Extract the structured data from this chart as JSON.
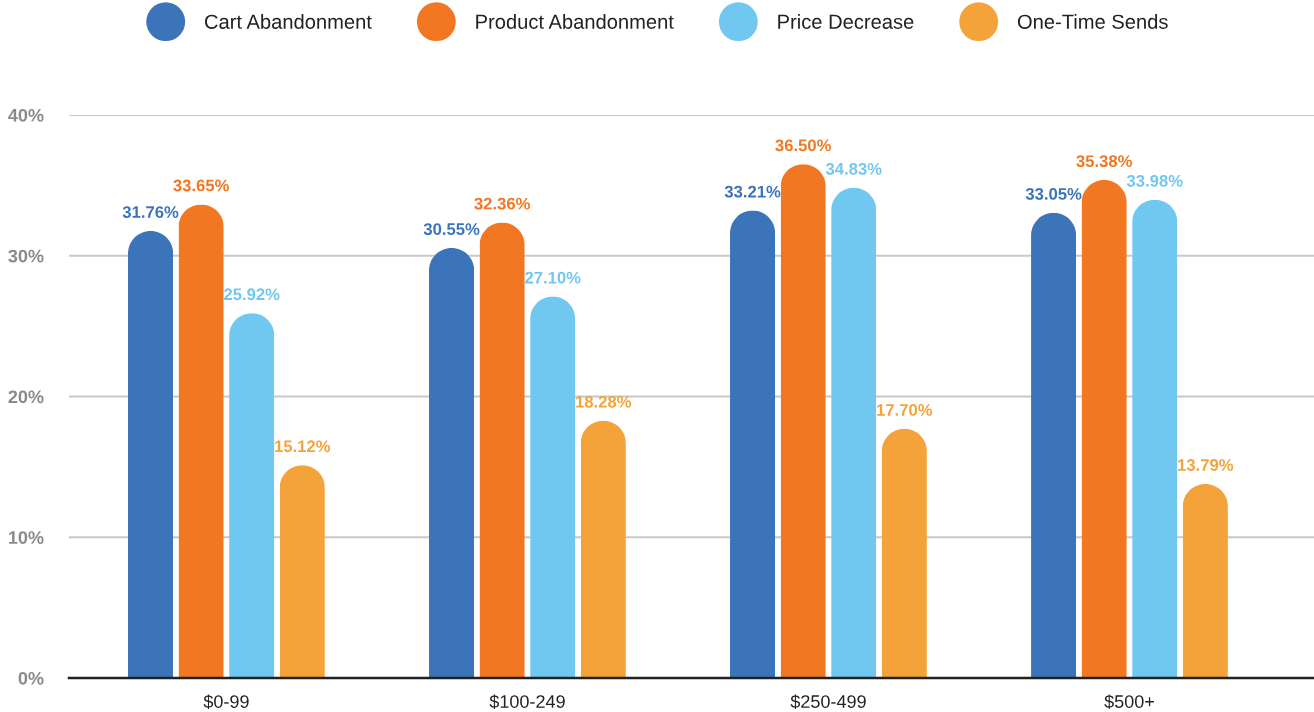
{
  "chart_data": {
    "type": "bar",
    "categories": [
      "$0-99",
      "$100-249",
      "$250-499",
      "$500+"
    ],
    "series": [
      {
        "name": "Cart Abandonment",
        "color": "#3c74ba",
        "values": [
          31.76,
          30.55,
          33.21,
          33.05
        ],
        "value_labels": [
          "31.76%",
          "30.55%",
          "33.21%",
          "33.05%"
        ]
      },
      {
        "name": "Product Abandonment",
        "color": "#f17722",
        "values": [
          33.65,
          32.36,
          36.5,
          35.38
        ],
        "value_labels": [
          "33.65%",
          "32.36%",
          "36.50%",
          "35.38%"
        ]
      },
      {
        "name": "Price Decrease",
        "color": "#70c8f1",
        "values": [
          25.92,
          27.1,
          34.83,
          33.98
        ],
        "value_labels": [
          "25.92%",
          "27.10%",
          "34.83%",
          "33.98%"
        ]
      },
      {
        "name": "One-Time Sends",
        "color": "#f4a33a",
        "values": [
          15.12,
          18.28,
          17.7,
          13.79
        ],
        "value_labels": [
          "15.12%",
          "18.28%",
          "17.70%",
          "13.79%"
        ]
      }
    ],
    "ylim": [
      0,
      40
    ],
    "yticks": [
      {
        "value": 0,
        "label": "0%"
      },
      {
        "value": 10,
        "label": "10%"
      },
      {
        "value": 20,
        "label": "20%"
      },
      {
        "value": 30,
        "label": "30%"
      },
      {
        "value": 40,
        "label": "40%"
      }
    ],
    "grid": "y",
    "legend": "top"
  }
}
